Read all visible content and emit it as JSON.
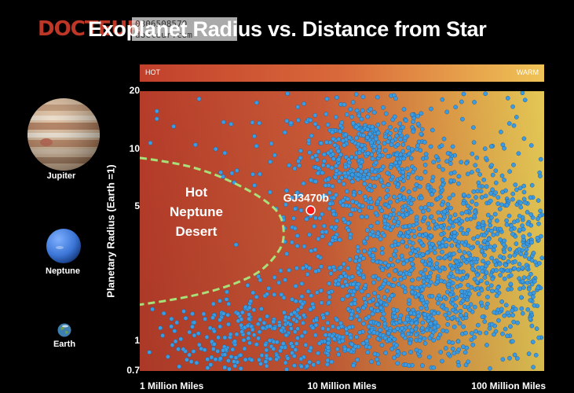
{
  "header": {
    "title": "Exoplanet Radius vs. Distance from Star",
    "watermark_name": "DOCTEUR",
    "watermark_line1": "0806508570",
    "watermark_line2": "docteur.com"
  },
  "band": {
    "hot_label": "HOT",
    "warm_label": "WARM"
  },
  "planets": [
    {
      "label": "Jupiter",
      "color": "#c9a07a"
    },
    {
      "label": "Neptune",
      "color": "#3b75d6"
    },
    {
      "label": "Earth",
      "color": "#3d7fb0"
    }
  ],
  "colors": {
    "hot": "#c1402c",
    "warm": "#efc456",
    "point": "#3d9be0",
    "highlight": "#ff1a1a",
    "desert_boundary": "#a8e07a"
  },
  "chart_data": {
    "type": "scatter",
    "title": "Exoplanet Radius vs. Distance from Star",
    "xlabel": "",
    "ylabel": "Planetary Radius (Earth =1)",
    "x_scale": "log",
    "y_scale": "log",
    "xlim": [
      1000000,
      100000000
    ],
    "ylim": [
      0.7,
      20
    ],
    "grid": false,
    "x_ticks": [
      {
        "value": 1000000,
        "label": "1 Million Miles"
      },
      {
        "value": 10000000,
        "label": "10 Million Miles"
      },
      {
        "value": 100000000,
        "label": "100 Million Miles"
      }
    ],
    "y_ticks": [
      {
        "value": 20,
        "label": "20"
      },
      {
        "value": 10,
        "label": "10"
      },
      {
        "value": 5,
        "label": "5"
      },
      {
        "value": 1,
        "label": "1"
      },
      {
        "value": 0.7,
        "label": "0.7"
      }
    ],
    "annotations": {
      "desert_label": [
        "Hot",
        "Neptune",
        "Desert"
      ]
    },
    "highlight": {
      "label": "GJ3470b",
      "x": 7000000,
      "y": 4.8
    },
    "desert_boundary": [
      [
        1000000,
        9.0
      ],
      [
        1500000,
        8.5
      ],
      [
        2200000,
        7.6
      ],
      [
        3000000,
        6.6
      ],
      [
        4000000,
        5.6
      ],
      [
        5000000,
        4.6
      ],
      [
        5200000,
        3.6
      ],
      [
        5000000,
        3.0
      ],
      [
        4000000,
        2.3
      ],
      [
        3000000,
        2.0
      ],
      [
        2200000,
        1.8
      ],
      [
        1500000,
        1.65
      ],
      [
        1000000,
        1.55
      ]
    ],
    "clusters": [
      {
        "name": "",
        "center": [
          13000000,
          10.0
        ],
        "spread": [
          0.16,
          0.12
        ],
        "count": 300
      },
      {
        "name": "",
        "center": [
          45000000,
          2.5
        ],
        "spread": [
          0.34,
          0.2
        ],
        "count": 750
      },
      {
        "name": "",
        "center": [
          14000000,
          1.3
        ],
        "spread": [
          0.3,
          0.16
        ],
        "count": 500
      },
      {
        "name": "",
        "center": [
          3500000,
          1.0
        ],
        "spread": [
          0.22,
          0.13
        ],
        "count": 200
      },
      {
        "name": "",
        "center": [
          30000000,
          8.0
        ],
        "spread": [
          0.35,
          0.17
        ],
        "count": 140
      },
      {
        "name": "",
        "center": [
          20000000,
          4.5
        ],
        "spread": [
          0.4,
          0.12
        ],
        "count": 250
      }
    ]
  }
}
